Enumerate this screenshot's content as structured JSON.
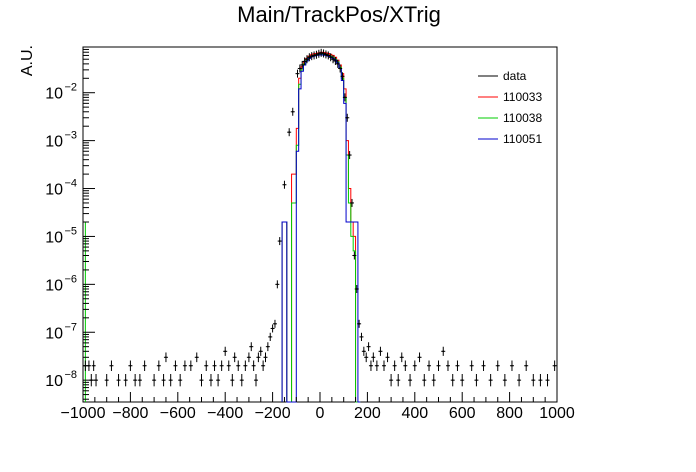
{
  "chart_data": {
    "type": "histogram",
    "title": "Main/TrackPos/XTrig",
    "ylabel": "A.U.",
    "xlabel": "",
    "x_range": [
      -1000,
      1000
    ],
    "y_range": [
      3.5e-09,
      0.09
    ],
    "y_log": true,
    "x_ticks": [
      -1000,
      -800,
      -600,
      -400,
      -200,
      0,
      200,
      400,
      600,
      800,
      1000
    ],
    "x_tick_labels": [
      "−1000",
      "−800",
      "−600",
      "−400",
      "−200",
      "0",
      "200",
      "400",
      "600",
      "800",
      "1000"
    ],
    "y_ticks": [
      1e-08,
      1e-07,
      1e-06,
      1e-05,
      0.0001,
      0.001,
      0.01
    ],
    "y_tick_labels": [
      {
        "base": "10",
        "exp": "−8"
      },
      {
        "base": "10",
        "exp": "−7"
      },
      {
        "base": "10",
        "exp": "−6"
      },
      {
        "base": "10",
        "exp": "−5"
      },
      {
        "base": "10",
        "exp": "−4"
      },
      {
        "base": "10",
        "exp": "−3"
      },
      {
        "base": "10",
        "exp": "−2"
      }
    ],
    "legend_position": "top-right",
    "bin_edges": [
      -160,
      -140,
      -120,
      -100,
      -90,
      -80,
      -70,
      -60,
      -50,
      -40,
      -30,
      -20,
      -10,
      0,
      10,
      20,
      30,
      40,
      50,
      60,
      70,
      80,
      90,
      100,
      110,
      120,
      130,
      140,
      150,
      160,
      170
    ],
    "series": [
      {
        "name": "data",
        "color": "#000000",
        "style": "markers",
        "points": [
          [
            -990,
            2e-08
          ],
          [
            -975,
            2e-08
          ],
          [
            -965,
            1e-08
          ],
          [
            -955,
            2e-08
          ],
          [
            -945,
            1e-08
          ],
          [
            -900,
            1e-08
          ],
          [
            -880,
            2e-08
          ],
          [
            -850,
            1e-08
          ],
          [
            -820,
            1e-08
          ],
          [
            -800,
            2e-08
          ],
          [
            -780,
            1e-08
          ],
          [
            -760,
            1e-08
          ],
          [
            -740,
            2e-08
          ],
          [
            -700,
            1e-08
          ],
          [
            -680,
            2e-08
          ],
          [
            -660,
            1e-08
          ],
          [
            -650,
            3e-08
          ],
          [
            -630,
            1e-08
          ],
          [
            -610,
            2e-08
          ],
          [
            -590,
            1e-08
          ],
          [
            -570,
            2e-08
          ],
          [
            -545,
            2e-08
          ],
          [
            -520,
            3e-08
          ],
          [
            -500,
            1e-08
          ],
          [
            -480,
            2e-08
          ],
          [
            -460,
            1e-08
          ],
          [
            -445,
            2e-08
          ],
          [
            -430,
            1e-08
          ],
          [
            -415,
            2e-08
          ],
          [
            -400,
            4e-08
          ],
          [
            -385,
            2e-08
          ],
          [
            -370,
            1e-08
          ],
          [
            -360,
            3e-08
          ],
          [
            -345,
            2e-08
          ],
          [
            -330,
            1e-08
          ],
          [
            -315,
            2e-08
          ],
          [
            -300,
            3e-08
          ],
          [
            -290,
            5e-08
          ],
          [
            -280,
            2e-08
          ],
          [
            -270,
            1e-08
          ],
          [
            -260,
            3e-08
          ],
          [
            -250,
            4e-08
          ],
          [
            -240,
            2e-08
          ],
          [
            -230,
            3e-08
          ],
          [
            -220,
            5e-08
          ],
          [
            -210,
            8e-08
          ],
          [
            -200,
            1.2e-07
          ],
          [
            -190,
            1.5e-07
          ],
          [
            -180,
            1e-06
          ],
          [
            -170,
            8e-06
          ],
          [
            -150,
            0.00012
          ],
          [
            -130,
            0.0015
          ],
          [
            -115,
            0.004
          ],
          [
            -95,
            0.025
          ],
          [
            -85,
            0.032
          ],
          [
            -75,
            0.038
          ],
          [
            -65,
            0.045
          ],
          [
            -55,
            0.05
          ],
          [
            -45,
            0.055
          ],
          [
            -35,
            0.058
          ],
          [
            -25,
            0.06
          ],
          [
            -15,
            0.062
          ],
          [
            -5,
            0.065
          ],
          [
            5,
            0.068
          ],
          [
            15,
            0.066
          ],
          [
            25,
            0.063
          ],
          [
            35,
            0.06
          ],
          [
            45,
            0.055
          ],
          [
            55,
            0.05
          ],
          [
            65,
            0.046
          ],
          [
            75,
            0.04
          ],
          [
            85,
            0.032
          ],
          [
            95,
            0.022
          ],
          [
            105,
            0.008
          ],
          [
            115,
            0.003
          ],
          [
            125,
            0.0005
          ],
          [
            135,
            5e-05
          ],
          [
            145,
            4e-06
          ],
          [
            155,
            8e-07
          ],
          [
            165,
            1.5e-07
          ],
          [
            175,
            8e-08
          ],
          [
            185,
            4e-08
          ],
          [
            195,
            3e-08
          ],
          [
            205,
            5e-08
          ],
          [
            215,
            2e-08
          ],
          [
            225,
            3e-08
          ],
          [
            240,
            2e-08
          ],
          [
            255,
            4e-08
          ],
          [
            270,
            2e-08
          ],
          [
            285,
            3e-08
          ],
          [
            300,
            1e-08
          ],
          [
            315,
            2e-08
          ],
          [
            330,
            1e-08
          ],
          [
            345,
            3e-08
          ],
          [
            360,
            2e-08
          ],
          [
            380,
            1e-08
          ],
          [
            400,
            2e-08
          ],
          [
            420,
            3e-08
          ],
          [
            440,
            1e-08
          ],
          [
            460,
            2e-08
          ],
          [
            480,
            1e-08
          ],
          [
            500,
            2e-08
          ],
          [
            520,
            4e-08
          ],
          [
            540,
            2e-08
          ],
          [
            560,
            1e-08
          ],
          [
            580,
            2e-08
          ],
          [
            600,
            1e-08
          ],
          [
            640,
            2e-08
          ],
          [
            660,
            1e-08
          ],
          [
            690,
            2e-08
          ],
          [
            720,
            1e-08
          ],
          [
            750,
            2e-08
          ],
          [
            780,
            1e-08
          ],
          [
            810,
            2e-08
          ],
          [
            840,
            1e-08
          ],
          [
            870,
            2e-08
          ],
          [
            900,
            1e-08
          ],
          [
            930,
            1e-08
          ],
          [
            960,
            1e-08
          ],
          [
            990,
            2e-08
          ]
        ]
      },
      {
        "name": "110033",
        "color": "#ff0000",
        "style": "step",
        "values": [
          2e-05,
          0,
          0.0002,
          0.0018,
          0.02,
          0.035,
          0.045,
          0.052,
          0.058,
          0.062,
          0.065,
          0.066,
          0.068,
          0.07,
          0.069,
          0.068,
          0.066,
          0.063,
          0.06,
          0.055,
          0.048,
          0.038,
          0.025,
          0.012,
          0.001,
          0.0001,
          2e-05,
          1e-05,
          0,
          0
        ]
      },
      {
        "name": "110038",
        "color": "#00cc00",
        "style": "step",
        "values": [
          2e-05,
          0,
          5e-05,
          0.0008,
          0.015,
          0.03,
          0.04,
          0.048,
          0.055,
          0.058,
          0.06,
          0.062,
          0.063,
          0.064,
          0.063,
          0.062,
          0.06,
          0.058,
          0.055,
          0.05,
          0.044,
          0.034,
          0.02,
          0.008,
          0.0005,
          5e-05,
          1e-05,
          5e-06,
          0,
          0
        ]
      },
      {
        "name": "110051",
        "color": "#0000cc",
        "style": "step",
        "values": [
          2e-05,
          0,
          0,
          0.0006,
          0.012,
          0.028,
          0.038,
          0.046,
          0.052,
          0.056,
          0.058,
          0.06,
          0.061,
          0.062,
          0.061,
          0.06,
          0.058,
          0.056,
          0.052,
          0.048,
          0.042,
          0.032,
          0.018,
          0.006,
          2e-05,
          2e-05,
          2e-05,
          2e-05,
          2e-05,
          0
        ]
      }
    ],
    "edge_spike": {
      "color": "#00cc00",
      "x": -990,
      "from": 3.5e-09,
      "to": 2e-05
    }
  }
}
